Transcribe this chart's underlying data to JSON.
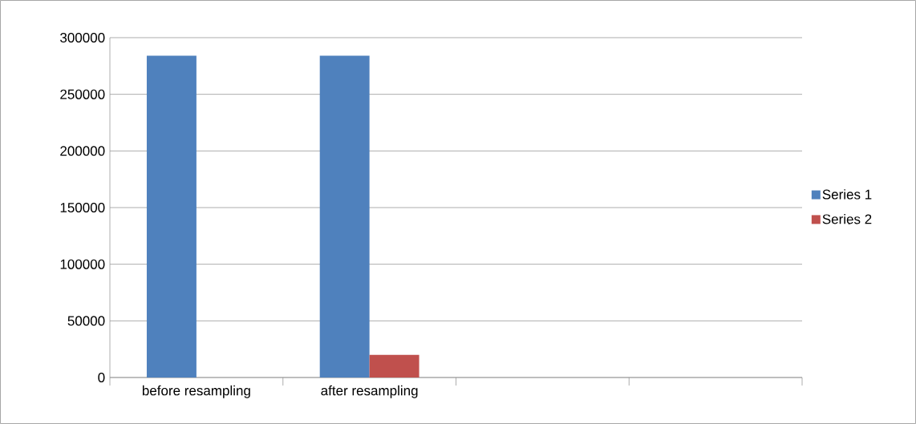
{
  "chart_data": {
    "type": "bar",
    "categories": [
      "before resampling",
      "after resampling",
      null,
      null
    ],
    "series": [
      {
        "name": "Series 1",
        "color": "#4f81bd",
        "values": [
          284000,
          284000,
          null,
          null
        ]
      },
      {
        "name": "Series 2",
        "color": "#c0504d",
        "values": [
          null,
          20000,
          null,
          null
        ]
      }
    ],
    "ylim": [
      0,
      300000
    ],
    "yticks": [
      0,
      50000,
      100000,
      150000,
      200000,
      250000,
      300000
    ],
    "grid": "y",
    "legend": "right"
  }
}
